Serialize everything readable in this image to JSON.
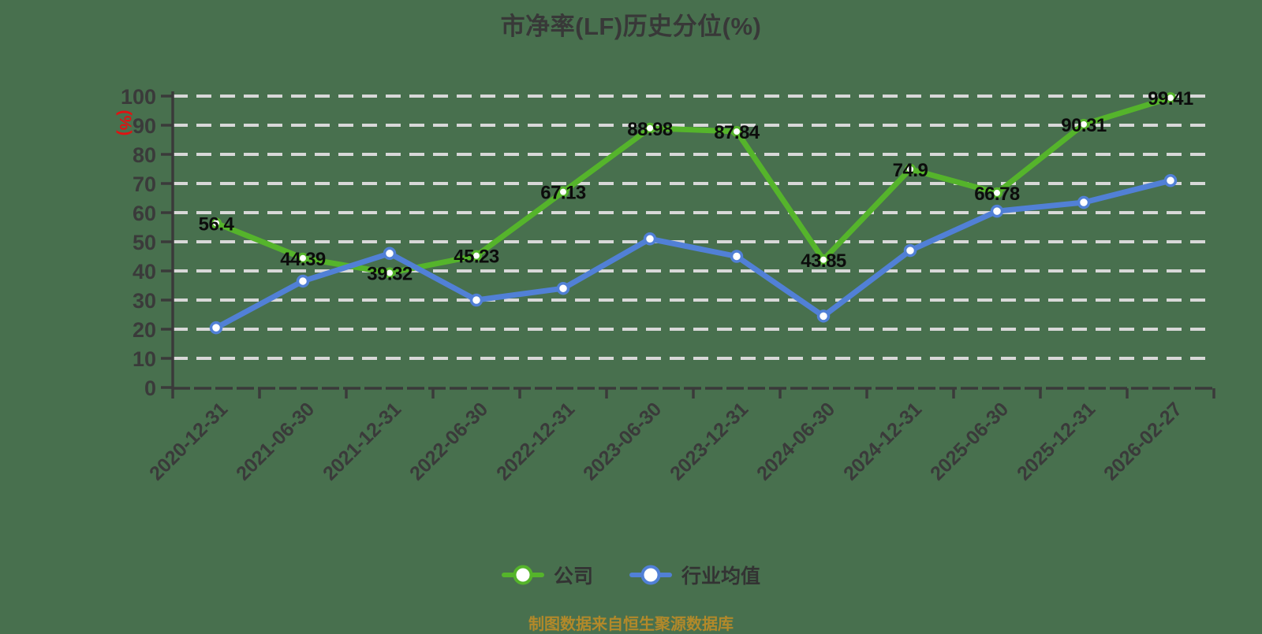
{
  "title": {
    "text": "市净率(LF)历史分位(%)"
  },
  "y_axis_unit": {
    "text": "(%)",
    "color": "#e01212"
  },
  "caption": {
    "text": "制图数据来自恒生聚源数据库",
    "color": "#b2892a"
  },
  "colors": {
    "background": "#48704e",
    "grid": "#d8d8d8",
    "axis": "#3a3a3a",
    "tick_label": "#3a3a3a",
    "data_label": "#0c0c0c",
    "title": "#383838",
    "company_series": "#55b42b",
    "industry_series": "#5180d6",
    "marker_fill": "#ffffff"
  },
  "chart_data": {
    "type": "line",
    "title": "市净率(LF)历史分位(%)",
    "categories": [
      "2020-12-31",
      "2021-06-30",
      "2021-12-31",
      "2022-06-30",
      "2022-12-31",
      "2023-06-30",
      "2023-12-31",
      "2024-06-30",
      "2024-12-31",
      "2025-06-30",
      "2025-12-31",
      "2026-02-27"
    ],
    "series": [
      {
        "name": "公司",
        "color": "#55b42b",
        "values": [
          56.4,
          44.39,
          39.32,
          45.23,
          67.13,
          88.98,
          87.84,
          43.85,
          74.9,
          66.78,
          90.31,
          99.41
        ],
        "data_labels": true
      },
      {
        "name": "行业均值",
        "color": "#5180d6",
        "values": [
          20.5,
          36.5,
          46,
          30,
          34,
          51,
          45,
          24.5,
          47,
          60.5,
          63.5,
          71
        ],
        "data_labels": false
      }
    ],
    "ylim": [
      0,
      100
    ],
    "y_ticks": [
      0,
      10,
      20,
      30,
      40,
      50,
      60,
      70,
      80,
      90,
      100
    ],
    "y_axis_label": "(%)",
    "x_label_rotation": 45,
    "grid": "horizontal-dashed",
    "legend_position": "bottom"
  }
}
